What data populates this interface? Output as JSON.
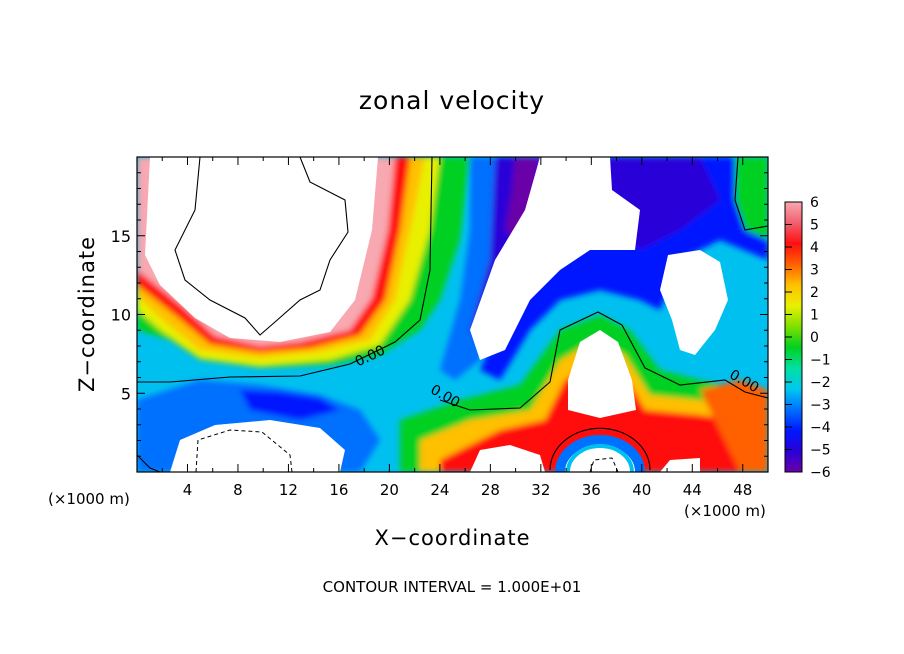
{
  "chart_data": {
    "type": "heatmap",
    "title": "zonal velocity",
    "xlabel": "X−coordinate",
    "ylabel": "Z−coordinate",
    "x_unit_label": "(×1000 m)",
    "xlim": [
      0,
      50
    ],
    "ylim": [
      0,
      20
    ],
    "x_ticks": [
      4,
      8,
      12,
      16,
      20,
      24,
      28,
      32,
      36,
      40,
      44,
      48
    ],
    "y_ticks": [
      5,
      10,
      15
    ],
    "colorbar": {
      "range": [
        -6,
        6
      ],
      "ticks": [
        6,
        5,
        4,
        3,
        2,
        1,
        0,
        -1,
        -2,
        -3,
        -4,
        -5,
        -6
      ],
      "tick_labels": [
        "6",
        "5",
        "4",
        "3",
        "2",
        "1",
        "0",
        "−1",
        "−2",
        "−3",
        "−4",
        "−5",
        "−6"
      ],
      "colors": [
        "#6a00a8",
        "#2a00d8",
        "#0018ff",
        "#0070ff",
        "#00c8f0",
        "#00e0a0",
        "#00d020",
        "#80e000",
        "#e8f000",
        "#ffc000",
        "#ff6000",
        "#ff1010",
        "#f06070",
        "#f8a8b0"
      ]
    },
    "contour_labels": [
      "0.00",
      "0.00",
      "0.00"
    ],
    "contour_interval_text": "CONTOUR INTERVAL = 1.000E+01"
  }
}
